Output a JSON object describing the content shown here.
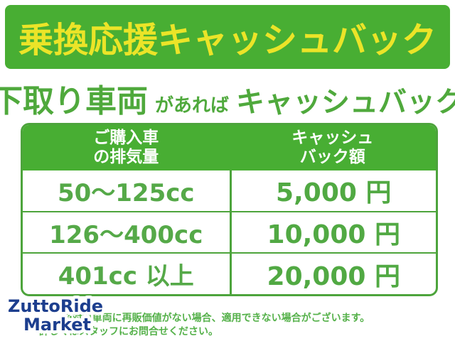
{
  "banner": {
    "text": "乗換応援キャッシュバック",
    "bg_color": "#48ae33",
    "text_color": "#ebe428"
  },
  "headline": {
    "part1": "下取り車両",
    "part2": "があれば",
    "part3": "キャッシュバック",
    "color": "#4fa93c"
  },
  "table": {
    "border_color": "#4da43c",
    "header_bg_color": "#48ae33",
    "header_text_color": "#ffffff",
    "body_text_color": "#55a948",
    "columns": [
      {
        "line1": "ご購入車",
        "line2": "の排気量"
      },
      {
        "line1": "キャッシュ",
        "line2": "バック額"
      }
    ],
    "rows": [
      {
        "displacement": "50〜125cc",
        "cashback": "5,000 円"
      },
      {
        "displacement": "126〜400cc",
        "cashback": "10,000 円"
      },
      {
        "displacement": "401cc 以上",
        "cashback": "20,000 円"
      }
    ]
  },
  "logo": {
    "line1": "ZuttoRide",
    "line2": "Market",
    "text_color": "#1c3e8e",
    "outline_color": "#ffffff"
  },
  "notes": {
    "line1": "※対象車両に再販価値がない場合、適用できない場合がございます。",
    "line2": "詳しくはスタッフにお問合せください。",
    "color": "#55b14a"
  }
}
